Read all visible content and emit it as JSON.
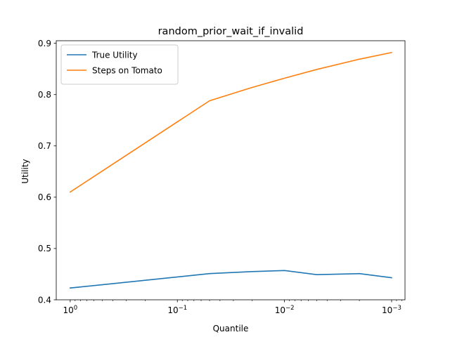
{
  "chart_data": {
    "type": "line",
    "title": "random_prior_wait_if_invalid",
    "xlabel": "Quantile",
    "ylabel": "Utility",
    "x_scale": "log",
    "x_inverted": true,
    "x": [
      1.0,
      0.05,
      0.02,
      0.01,
      0.005,
      0.002,
      0.001
    ],
    "xlim": [
      1.35,
      0.00075
    ],
    "ylim": [
      0.4,
      0.905
    ],
    "x_ticks": [
      {
        "value": 1,
        "base": "10",
        "exp": "0"
      },
      {
        "value": 0.1,
        "base": "10",
        "exp": "−1"
      },
      {
        "value": 0.01,
        "base": "10",
        "exp": "−2"
      },
      {
        "value": 0.001,
        "base": "10",
        "exp": "−3"
      }
    ],
    "y_ticks": [
      {
        "value": 0.4,
        "label": "0.4"
      },
      {
        "value": 0.5,
        "label": "0.5"
      },
      {
        "value": 0.6,
        "label": "0.6"
      },
      {
        "value": 0.7,
        "label": "0.7"
      },
      {
        "value": 0.8,
        "label": "0.8"
      },
      {
        "value": 0.9,
        "label": "0.9"
      }
    ],
    "grid": false,
    "legend_position": "top-left",
    "series": [
      {
        "name": "True Utility",
        "color": "#1f77b4",
        "values": [
          0.423,
          0.451,
          0.455,
          0.457,
          0.449,
          0.451,
          0.443
        ]
      },
      {
        "name": "Steps on Tomato",
        "color": "#ff7f0e",
        "values": [
          0.61,
          0.788,
          0.814,
          0.832,
          0.849,
          0.869,
          0.882
        ]
      }
    ]
  }
}
